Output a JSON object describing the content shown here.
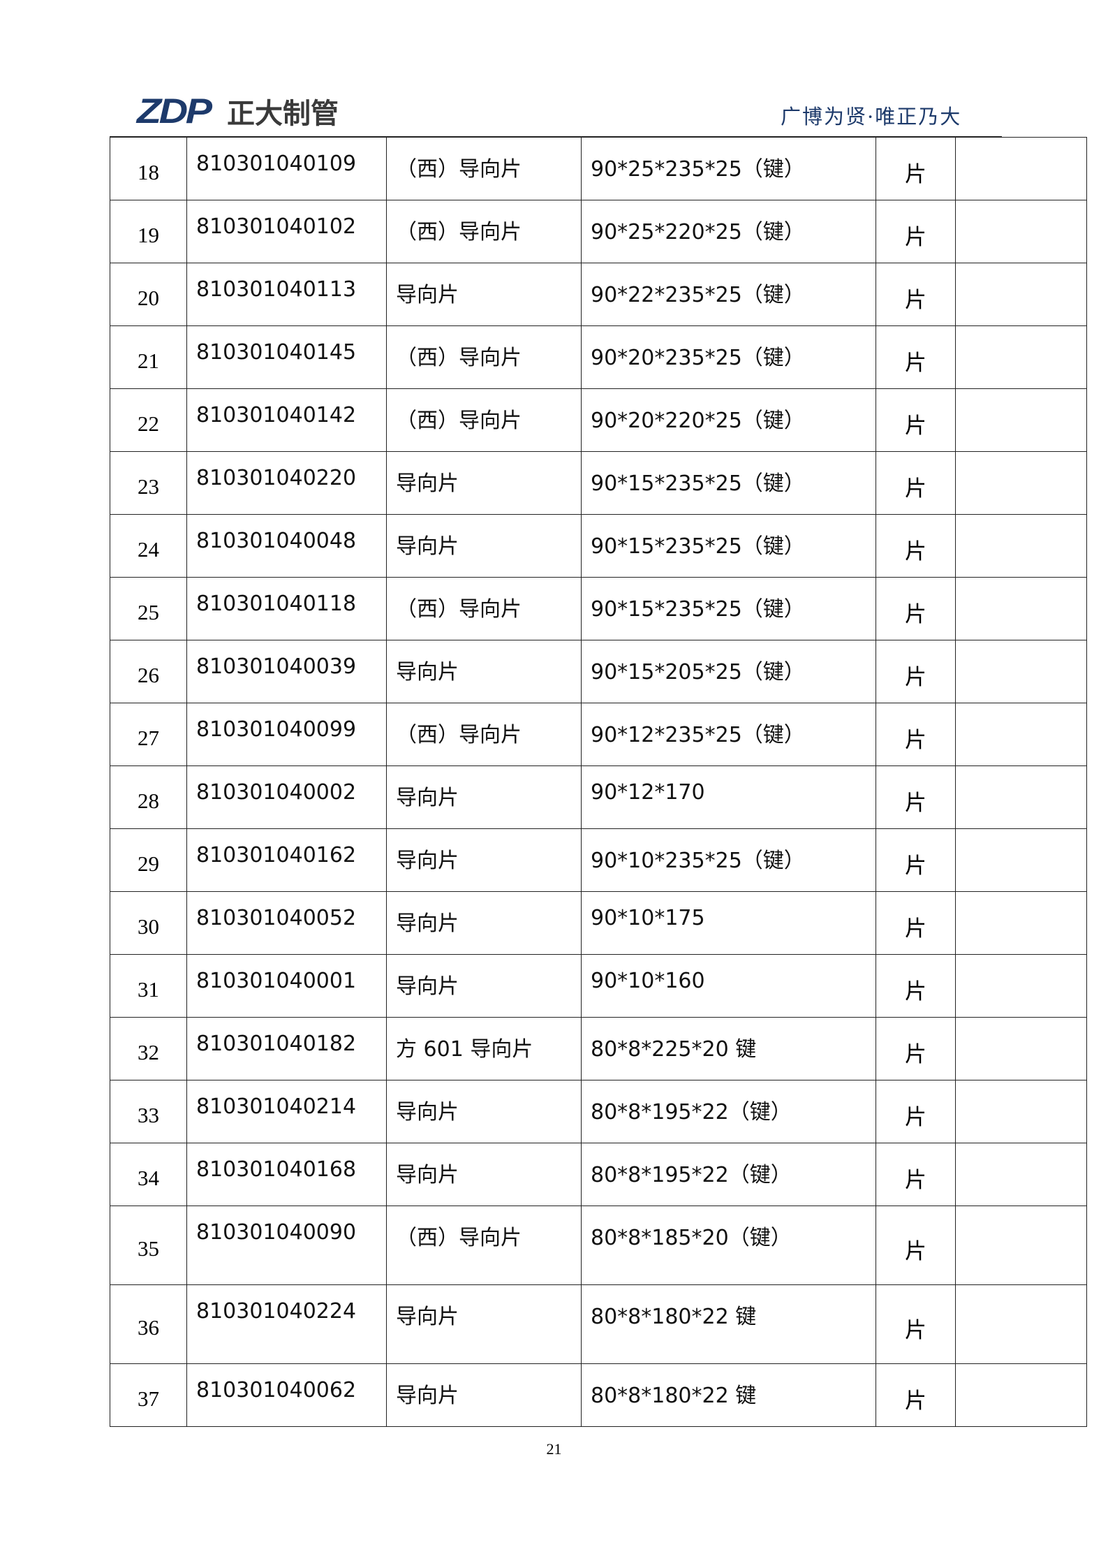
{
  "header": {
    "logo_mark": "ZDP",
    "logo_text": "正大制管",
    "slogan": "广博为贤·唯正乃大"
  },
  "rows": [
    {
      "no": "18",
      "code": "810301040109",
      "name": "（西）导向片",
      "spec": "90*25*235*25（键）",
      "unit": "片",
      "note": ""
    },
    {
      "no": "19",
      "code": "810301040102",
      "name": "（西）导向片",
      "spec": "90*25*220*25（键）",
      "unit": "片",
      "note": ""
    },
    {
      "no": "20",
      "code": "810301040113",
      "name": "导向片",
      "spec": "90*22*235*25（键）",
      "unit": "片",
      "note": ""
    },
    {
      "no": "21",
      "code": "810301040145",
      "name": "（西）导向片",
      "spec": "90*20*235*25（键）",
      "unit": "片",
      "note": ""
    },
    {
      "no": "22",
      "code": "810301040142",
      "name": "（西）导向片",
      "spec": "90*20*220*25（键）",
      "unit": "片",
      "note": ""
    },
    {
      "no": "23",
      "code": "810301040220",
      "name": "导向片",
      "spec": "90*15*235*25（键）",
      "unit": "片",
      "note": ""
    },
    {
      "no": "24",
      "code": "810301040048",
      "name": "导向片",
      "spec": "90*15*235*25（键）",
      "unit": "片",
      "note": ""
    },
    {
      "no": "25",
      "code": "810301040118",
      "name": "（西）导向片",
      "spec": "90*15*235*25（键）",
      "unit": "片",
      "note": ""
    },
    {
      "no": "26",
      "code": "810301040039",
      "name": "导向片",
      "spec": "90*15*205*25（键）",
      "unit": "片",
      "note": ""
    },
    {
      "no": "27",
      "code": "810301040099",
      "name": "（西）导向片",
      "spec": "90*12*235*25（键）",
      "unit": "片",
      "note": ""
    },
    {
      "no": "28",
      "code": "810301040002",
      "name": "导向片",
      "spec": "90*12*170",
      "unit": "片",
      "note": ""
    },
    {
      "no": "29",
      "code": "810301040162",
      "name": "导向片",
      "spec": "90*10*235*25（键）",
      "unit": "片",
      "note": ""
    },
    {
      "no": "30",
      "code": "810301040052",
      "name": "导向片",
      "spec": "90*10*175",
      "unit": "片",
      "note": ""
    },
    {
      "no": "31",
      "code": "810301040001",
      "name": "导向片",
      "spec": "90*10*160",
      "unit": "片",
      "note": ""
    },
    {
      "no": "32",
      "code": "810301040182",
      "name": "方 601 导向片",
      "spec": "80*8*225*20 键",
      "unit": "片",
      "note": ""
    },
    {
      "no": "33",
      "code": "810301040214",
      "name": "导向片",
      "spec": "80*8*195*22（键）",
      "unit": "片",
      "note": ""
    },
    {
      "no": "34",
      "code": "810301040168",
      "name": "导向片",
      "spec": "80*8*195*22（键）",
      "unit": "片",
      "note": ""
    },
    {
      "no": "35",
      "code": "810301040090",
      "name": "（西）导向片",
      "spec": "80*8*185*20（键）",
      "unit": "片",
      "note": ""
    },
    {
      "no": "36",
      "code": "810301040224",
      "name": "导向片",
      "spec": "80*8*180*22 键",
      "unit": "片",
      "note": ""
    },
    {
      "no": "37",
      "code": "810301040062",
      "name": "导向片",
      "spec": "80*8*180*22 键",
      "unit": "片",
      "note": ""
    }
  ],
  "footer": {
    "page_number": "21"
  }
}
